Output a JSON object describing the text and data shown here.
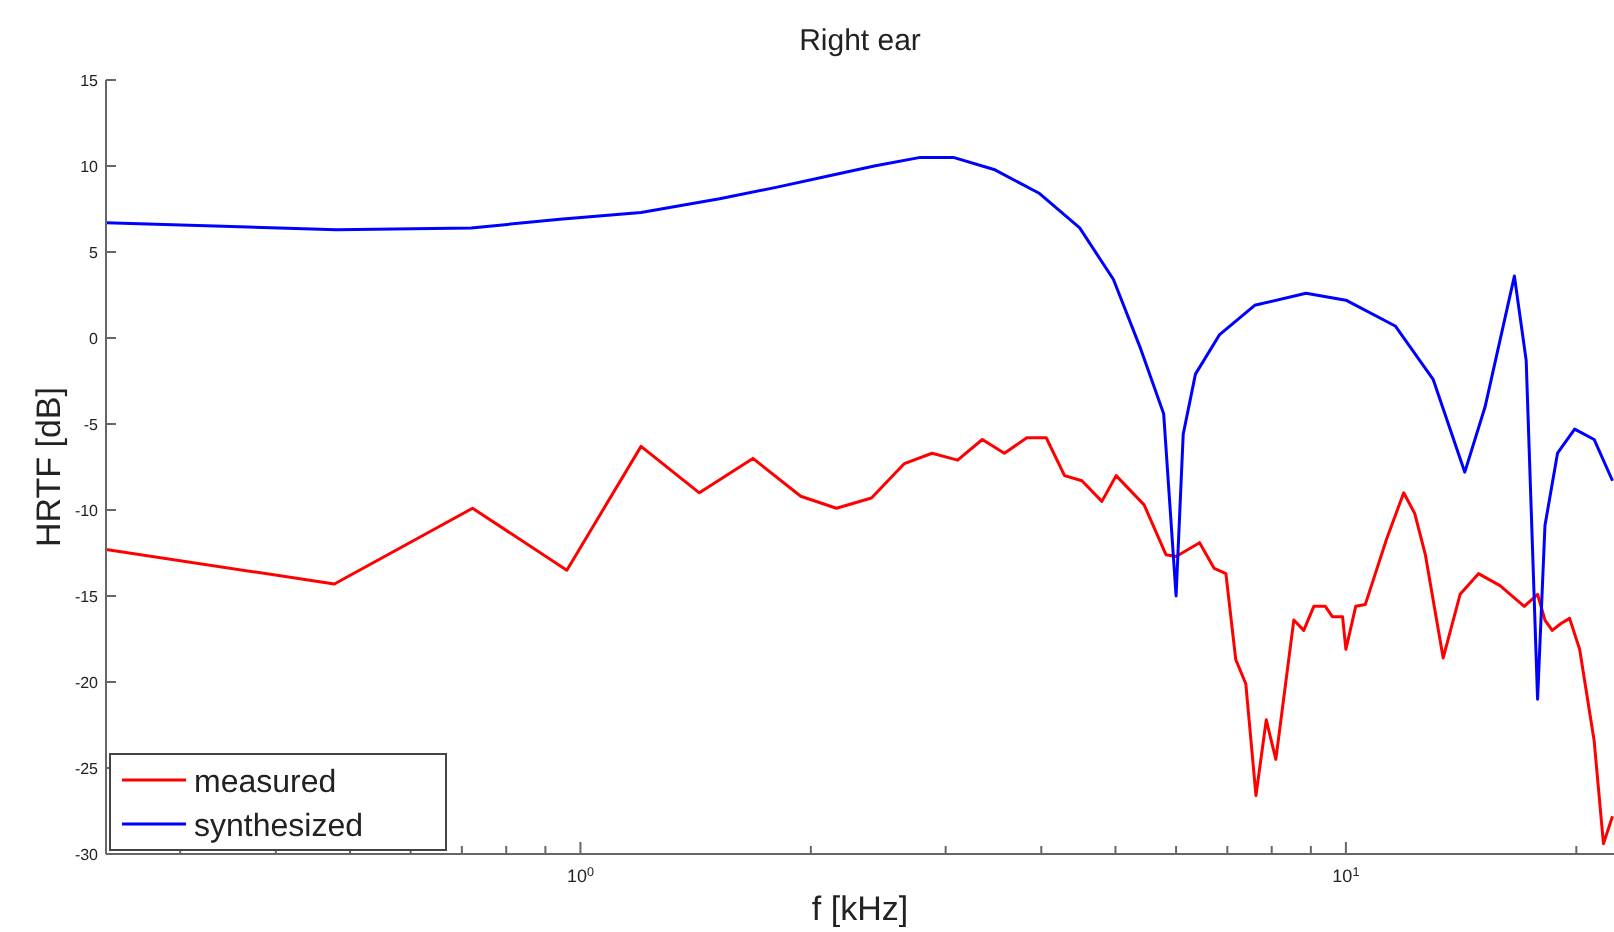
{
  "chart_data": {
    "type": "line",
    "title": "Right ear",
    "xlabel": "f [kHz]",
    "ylabel": "HRTF [dB]",
    "log": "x",
    "xlim": [
      0.24,
      22.4
    ],
    "ylim": [
      -30,
      15
    ],
    "xticks": [
      {
        "value": 0.3,
        "label": null
      },
      {
        "value": 0.4,
        "label": null
      },
      {
        "value": 0.5,
        "label": null
      },
      {
        "value": 0.6,
        "label": null
      },
      {
        "value": 0.7,
        "label": null
      },
      {
        "value": 0.8,
        "label": null
      },
      {
        "value": 0.9,
        "label": null
      },
      {
        "value": 1,
        "label": "10$^{0}$"
      },
      {
        "value": 2,
        "label": null
      },
      {
        "value": 3,
        "label": null
      },
      {
        "value": 4,
        "label": null
      },
      {
        "value": 5,
        "label": null
      },
      {
        "value": 6,
        "label": null
      },
      {
        "value": 7,
        "label": null
      },
      {
        "value": 8,
        "label": null
      },
      {
        "value": 9,
        "label": null
      },
      {
        "value": 10,
        "label": "10$^{1}$"
      },
      {
        "value": 20,
        "label": null
      }
    ],
    "yticks": [
      -30,
      -25,
      -20,
      -15,
      -10,
      -5,
      0,
      5,
      10,
      15
    ],
    "grid": false,
    "legend": "bottom left",
    "line_style": "solid",
    "series": [
      {
        "name": "measured",
        "color": "#ff0000",
        "x": [
          0.24,
          0.477,
          0.723,
          0.96,
          1.2,
          1.43,
          1.68,
          1.94,
          2.16,
          2.4,
          2.65,
          2.88,
          3.11,
          3.35,
          3.58,
          3.83,
          4.06,
          4.29,
          4.52,
          4.8,
          5.01,
          5.45,
          5.82,
          6.0,
          6.44,
          6.73,
          6.97,
          7.18,
          7.4,
          7.63,
          7.87,
          8.1,
          8.55,
          8.81,
          9.08,
          9.4,
          9.6,
          9.9,
          10.0,
          10.3,
          10.6,
          11.3,
          11.9,
          12.3,
          12.7,
          13.4,
          14.1,
          14.9,
          15.9,
          17.1,
          17.8,
          18.2,
          18.6,
          19.1,
          19.6,
          20.2,
          21.1,
          21.7,
          22.3
        ],
        "values": [
          -12.3,
          -14.3,
          -9.9,
          -13.5,
          -6.3,
          -9.0,
          -7.0,
          -9.2,
          -9.9,
          -9.3,
          -7.3,
          -6.7,
          -7.1,
          -5.9,
          -6.7,
          -5.8,
          -5.8,
          -8.0,
          -8.3,
          -9.5,
          -8.0,
          -9.7,
          -12.6,
          -12.7,
          -11.9,
          -13.4,
          -13.7,
          -18.7,
          -20.1,
          -26.6,
          -22.2,
          -24.5,
          -16.4,
          -17.0,
          -15.6,
          -15.6,
          -16.2,
          -16.2,
          -18.1,
          -15.6,
          -15.5,
          -11.7,
          -9.0,
          -10.2,
          -12.6,
          -18.6,
          -14.9,
          -13.7,
          -14.4,
          -15.6,
          -14.9,
          -16.4,
          -17.0,
          -16.6,
          -16.3,
          -18.1,
          -23.4,
          -29.4,
          -27.8
        ]
      },
      {
        "name": "synthesized",
        "color": "#0000ff",
        "x": [
          0.24,
          0.48,
          0.72,
          0.94,
          1.2,
          1.52,
          1.82,
          2.1,
          2.42,
          2.78,
          3.07,
          3.47,
          3.98,
          4.49,
          4.97,
          5.38,
          5.78,
          6.0,
          6.13,
          6.36,
          6.84,
          7.6,
          8.87,
          10.0,
          11.6,
          13.0,
          14.3,
          15.2,
          16.6,
          17.2,
          17.8,
          18.2,
          18.9,
          19.9,
          21.1,
          22.3
        ],
        "values": [
          6.7,
          6.3,
          6.4,
          6.9,
          7.3,
          8.1,
          8.8,
          9.4,
          10.0,
          10.5,
          10.5,
          9.8,
          8.4,
          6.4,
          3.4,
          -0.5,
          -4.4,
          -15.0,
          -5.6,
          -2.1,
          0.2,
          1.9,
          2.6,
          2.2,
          0.7,
          -2.4,
          -7.8,
          -4.0,
          3.6,
          -1.3,
          -21.0,
          -10.9,
          -6.7,
          -5.3,
          -5.9,
          -8.3
        ]
      }
    ]
  }
}
